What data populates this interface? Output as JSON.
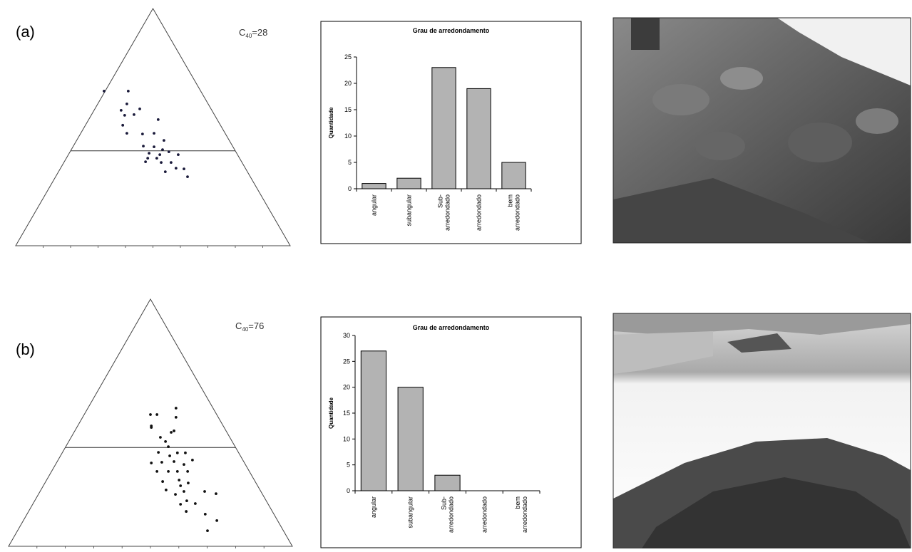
{
  "panel_labels": [
    "(a)",
    "(b)"
  ],
  "chart_data": [
    {
      "type": "ternary",
      "annotation": {
        "symbol": "C",
        "subscript": "40",
        "text": "=28"
      },
      "xlim": [
        0,
        100
      ],
      "ylim": [
        0,
        100
      ],
      "divider": 40,
      "x": [
        32.2,
        41.0,
        40.5,
        38.4,
        45.2,
        39.7,
        43.1,
        51.9,
        39.0,
        40.5,
        46.2,
        50.4,
        54.0,
        46.5,
        50.4,
        53.5,
        55.8,
        48.6,
        52.5,
        59.2,
        48.1,
        51.4,
        53.0,
        47.3,
        56.6,
        54.5,
        58.4,
        61.3,
        62.6
      ],
      "y": [
        65.2,
        65.2,
        59.8,
        57.1,
        57.7,
        55.0,
        55.3,
        53.2,
        50.8,
        47.4,
        47.1,
        47.4,
        44.4,
        42.0,
        41.7,
        40.5,
        39.6,
        39.0,
        38.4,
        38.4,
        36.9,
        36.9,
        35.1,
        35.4,
        35.1,
        31.2,
        32.7,
        32.4,
        29.1
      ],
      "color": "#1a1a3a"
    },
    {
      "type": "bar",
      "title": "Grau de arredondamento",
      "y_label": "Quantidade",
      "categories": [
        [
          "angular"
        ],
        [
          "subangular"
        ],
        [
          "Sub-",
          "arredondado"
        ],
        [
          "arredondado"
        ],
        [
          "bem",
          "arredondado"
        ]
      ],
      "values": [
        1,
        2,
        23,
        19,
        5
      ],
      "color": "#b3b3b3",
      "ylim": [
        0,
        25
      ],
      "yticks": [
        0,
        5,
        10,
        15,
        20,
        25
      ]
    },
    {
      "type": "ternary",
      "annotation": {
        "symbol": "C",
        "subscript": "40",
        "text": "=76"
      },
      "xlim": [
        0,
        100
      ],
      "ylim": [
        0,
        100
      ],
      "divider": 40,
      "x": [
        50.0,
        52.3,
        59.0,
        50.3,
        50.3,
        59.0,
        58.3,
        57.3,
        53.5,
        55.3,
        56.3,
        52.8,
        56.8,
        59.5,
        62.3,
        64.8,
        50.3,
        54.0,
        58.3,
        61.8,
        52.3,
        56.3,
        59.5,
        63.1,
        60.1,
        54.3,
        63.3,
        60.6,
        55.5,
        61.8,
        58.8,
        69.1,
        73.1,
        62.8,
        60.6,
        65.8,
        62.6,
        69.3,
        73.4,
        70.1
      ],
      "y": [
        53.3,
        53.3,
        55.9,
        48.7,
        48.1,
        52.2,
        46.7,
        46.1,
        44.1,
        42.4,
        40.3,
        38.0,
        36.6,
        37.8,
        37.8,
        34.9,
        33.7,
        34.0,
        34.3,
        33.1,
        30.3,
        30.3,
        30.3,
        30.3,
        26.8,
        26.2,
        25.6,
        24.5,
        22.8,
        22.2,
        21.0,
        22.2,
        21.3,
        18.4,
        17.0,
        17.3,
        14.1,
        13.0,
        10.4,
        6.3
      ],
      "color": "#111111"
    },
    {
      "type": "bar",
      "title": "Grau de arredondamento",
      "y_label": "Quantidade",
      "categories": [
        [
          "angular"
        ],
        [
          "subangular"
        ],
        [
          "Sub-",
          "arredondado"
        ],
        [
          "arredondado"
        ],
        [
          "bem",
          "arredondado"
        ]
      ],
      "values": [
        27,
        20,
        3,
        0,
        0
      ],
      "color": "#b3b3b3",
      "ylim": [
        0,
        30
      ],
      "yticks": [
        0,
        5,
        10,
        15,
        20,
        25,
        30
      ]
    }
  ]
}
